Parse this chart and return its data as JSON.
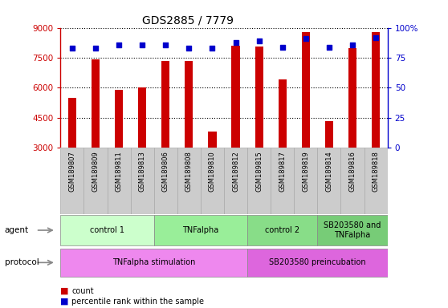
{
  "title": "GDS2885 / 7779",
  "samples": [
    "GSM189807",
    "GSM189809",
    "GSM189811",
    "GSM189813",
    "GSM189806",
    "GSM189808",
    "GSM189810",
    "GSM189812",
    "GSM189815",
    "GSM189817",
    "GSM189819",
    "GSM189814",
    "GSM189816",
    "GSM189818"
  ],
  "counts": [
    5500,
    7400,
    5900,
    6000,
    7350,
    7350,
    3800,
    8100,
    8050,
    6400,
    8800,
    4350,
    8000,
    8800
  ],
  "percentiles": [
    83,
    83,
    86,
    86,
    86,
    83,
    83,
    88,
    89,
    84,
    91,
    84,
    86,
    92
  ],
  "ylim_left": [
    3000,
    9000
  ],
  "ylim_right": [
    0,
    100
  ],
  "yticks_left": [
    3000,
    4500,
    6000,
    7500,
    9000
  ],
  "yticks_right": [
    0,
    25,
    50,
    75,
    100
  ],
  "bar_color": "#cc0000",
  "dot_color": "#0000cc",
  "agent_groups": [
    {
      "label": "control 1",
      "start": 0,
      "end": 4,
      "color": "#ccffcc"
    },
    {
      "label": "TNFalpha",
      "start": 4,
      "end": 8,
      "color": "#99ee99"
    },
    {
      "label": "control 2",
      "start": 8,
      "end": 11,
      "color": "#88dd88"
    },
    {
      "label": "SB203580 and\nTNFalpha",
      "start": 11,
      "end": 14,
      "color": "#77cc77"
    }
  ],
  "protocol_groups": [
    {
      "label": "TNFalpha stimulation",
      "start": 0,
      "end": 8,
      "color": "#ee88ee"
    },
    {
      "label": "SB203580 preincubation",
      "start": 8,
      "end": 14,
      "color": "#dd66dd"
    }
  ],
  "bar_color_hex": "#cc0000",
  "dot_color_hex": "#0000cc",
  "left_tick_color": "#cc0000",
  "right_tick_color": "#0000cc",
  "sample_bg_color": "#cccccc",
  "sample_edge_color": "#aaaaaa"
}
